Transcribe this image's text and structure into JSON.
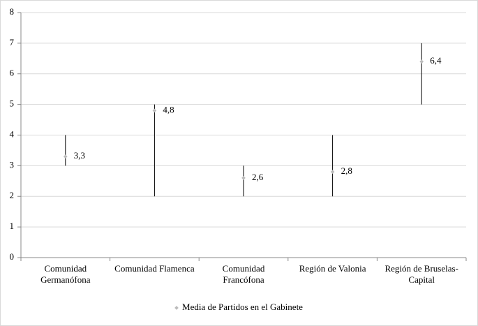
{
  "chart_data": {
    "type": "stock",
    "categories": [
      "Comunidad Germanófona",
      "Comunidad Flamenca",
      "Comunidad Francófona",
      "Región de Valonia",
      "Región de Bruselas-Capital"
    ],
    "high": [
      4,
      5,
      3,
      4,
      7
    ],
    "low": [
      3,
      2,
      2,
      2,
      5
    ],
    "series": [
      {
        "name": "Media de Partidos en el Gabinete",
        "color": "#bbbbbb",
        "values": [
          3.3,
          4.8,
          2.6,
          2.8,
          6.4
        ],
        "value_labels": [
          "3,3",
          "4,8",
          "2,6",
          "2,8",
          "6,4"
        ]
      }
    ],
    "range_color": "#000000",
    "ylim": [
      0,
      8
    ],
    "yticks": [
      0,
      1,
      2,
      3,
      4,
      5,
      6,
      7,
      8
    ],
    "grid": true,
    "legend": "bottom"
  }
}
